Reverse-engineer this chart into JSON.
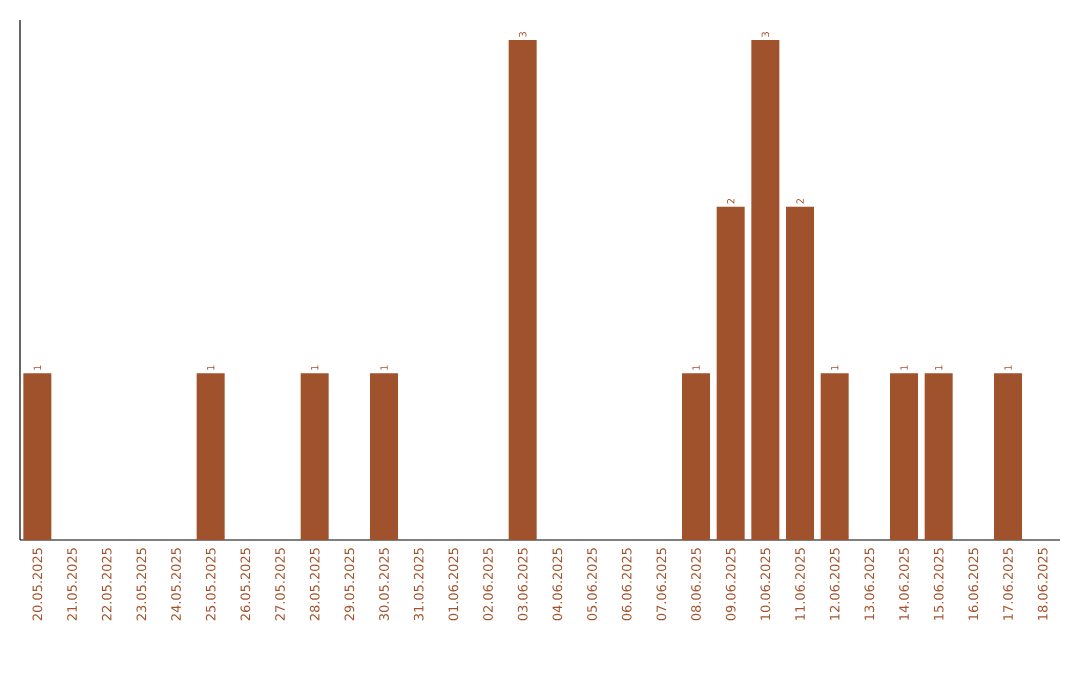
{
  "chart_data": {
    "type": "bar",
    "categories": [
      "20.05.2025",
      "21.05.2025",
      "22.05.2025",
      "23.05.2025",
      "24.05.2025",
      "25.05.2025",
      "26.05.2025",
      "27.05.2025",
      "28.05.2025",
      "29.05.2025",
      "30.05.2025",
      "31.05.2025",
      "01.06.2025",
      "02.06.2025",
      "03.06.2025",
      "04.06.2025",
      "05.06.2025",
      "06.06.2025",
      "07.06.2025",
      "08.06.2025",
      "09.06.2025",
      "10.06.2025",
      "11.06.2025",
      "12.06.2025",
      "13.06.2025",
      "14.06.2025",
      "15.06.2025",
      "16.06.2025",
      "17.06.2025",
      "18.06.2025"
    ],
    "values": [
      1,
      0,
      0,
      0,
      0,
      1,
      0,
      0,
      1,
      0,
      1,
      0,
      0,
      0,
      3,
      0,
      0,
      0,
      0,
      1,
      2,
      3,
      2,
      1,
      0,
      1,
      1,
      0,
      1,
      0
    ],
    "value_labels": [
      "1",
      null,
      null,
      null,
      null,
      "1",
      null,
      null,
      "1",
      null,
      "1",
      null,
      null,
      null,
      "3",
      null,
      null,
      null,
      null,
      "1",
      "2",
      "3",
      "2",
      "1",
      null,
      "1",
      "1",
      null,
      "1",
      null
    ],
    "color": "#a0522d"
  }
}
